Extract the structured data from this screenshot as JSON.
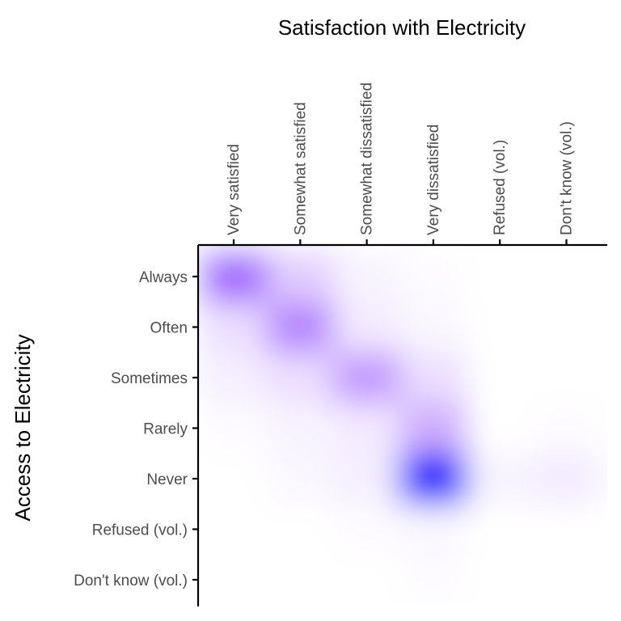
{
  "chart_data": {
    "type": "heatmap",
    "title": "",
    "xlabel": "Satisfaction with Electricity",
    "ylabel": "Access to Electricity",
    "x_categories": [
      "Very satisfied",
      "Somewhat satisfied",
      "Somewhat dissatisfied",
      "Very dissatisfied",
      "Refused (vol.)",
      "Don't know (vol.)"
    ],
    "y_categories": [
      "Always",
      "Often",
      "Sometimes",
      "Rarely",
      "Never",
      "Refused (vol.)",
      "Don't know (vol.)"
    ],
    "x_axis_position": "top",
    "values": [
      [
        0.38,
        0.12,
        0.03,
        0.01,
        0.0,
        0.0
      ],
      [
        0.08,
        0.3,
        0.05,
        0.02,
        0.0,
        0.0
      ],
      [
        0.04,
        0.08,
        0.25,
        0.08,
        0.0,
        0.0
      ],
      [
        0.01,
        0.03,
        0.05,
        0.2,
        0.0,
        0.01
      ],
      [
        0.0,
        0.02,
        0.04,
        1.0,
        0.03,
        0.05
      ],
      [
        0.0,
        0.0,
        0.01,
        0.02,
        0.0,
        0.0
      ],
      [
        0.0,
        0.0,
        0.0,
        0.01,
        0.0,
        0.0
      ]
    ],
    "value_scale": "relative intensity",
    "color_low": "#ffffff",
    "color_mid": "#9b59ff",
    "color_high": "#0000ff",
    "grid": false,
    "legend": "none"
  }
}
